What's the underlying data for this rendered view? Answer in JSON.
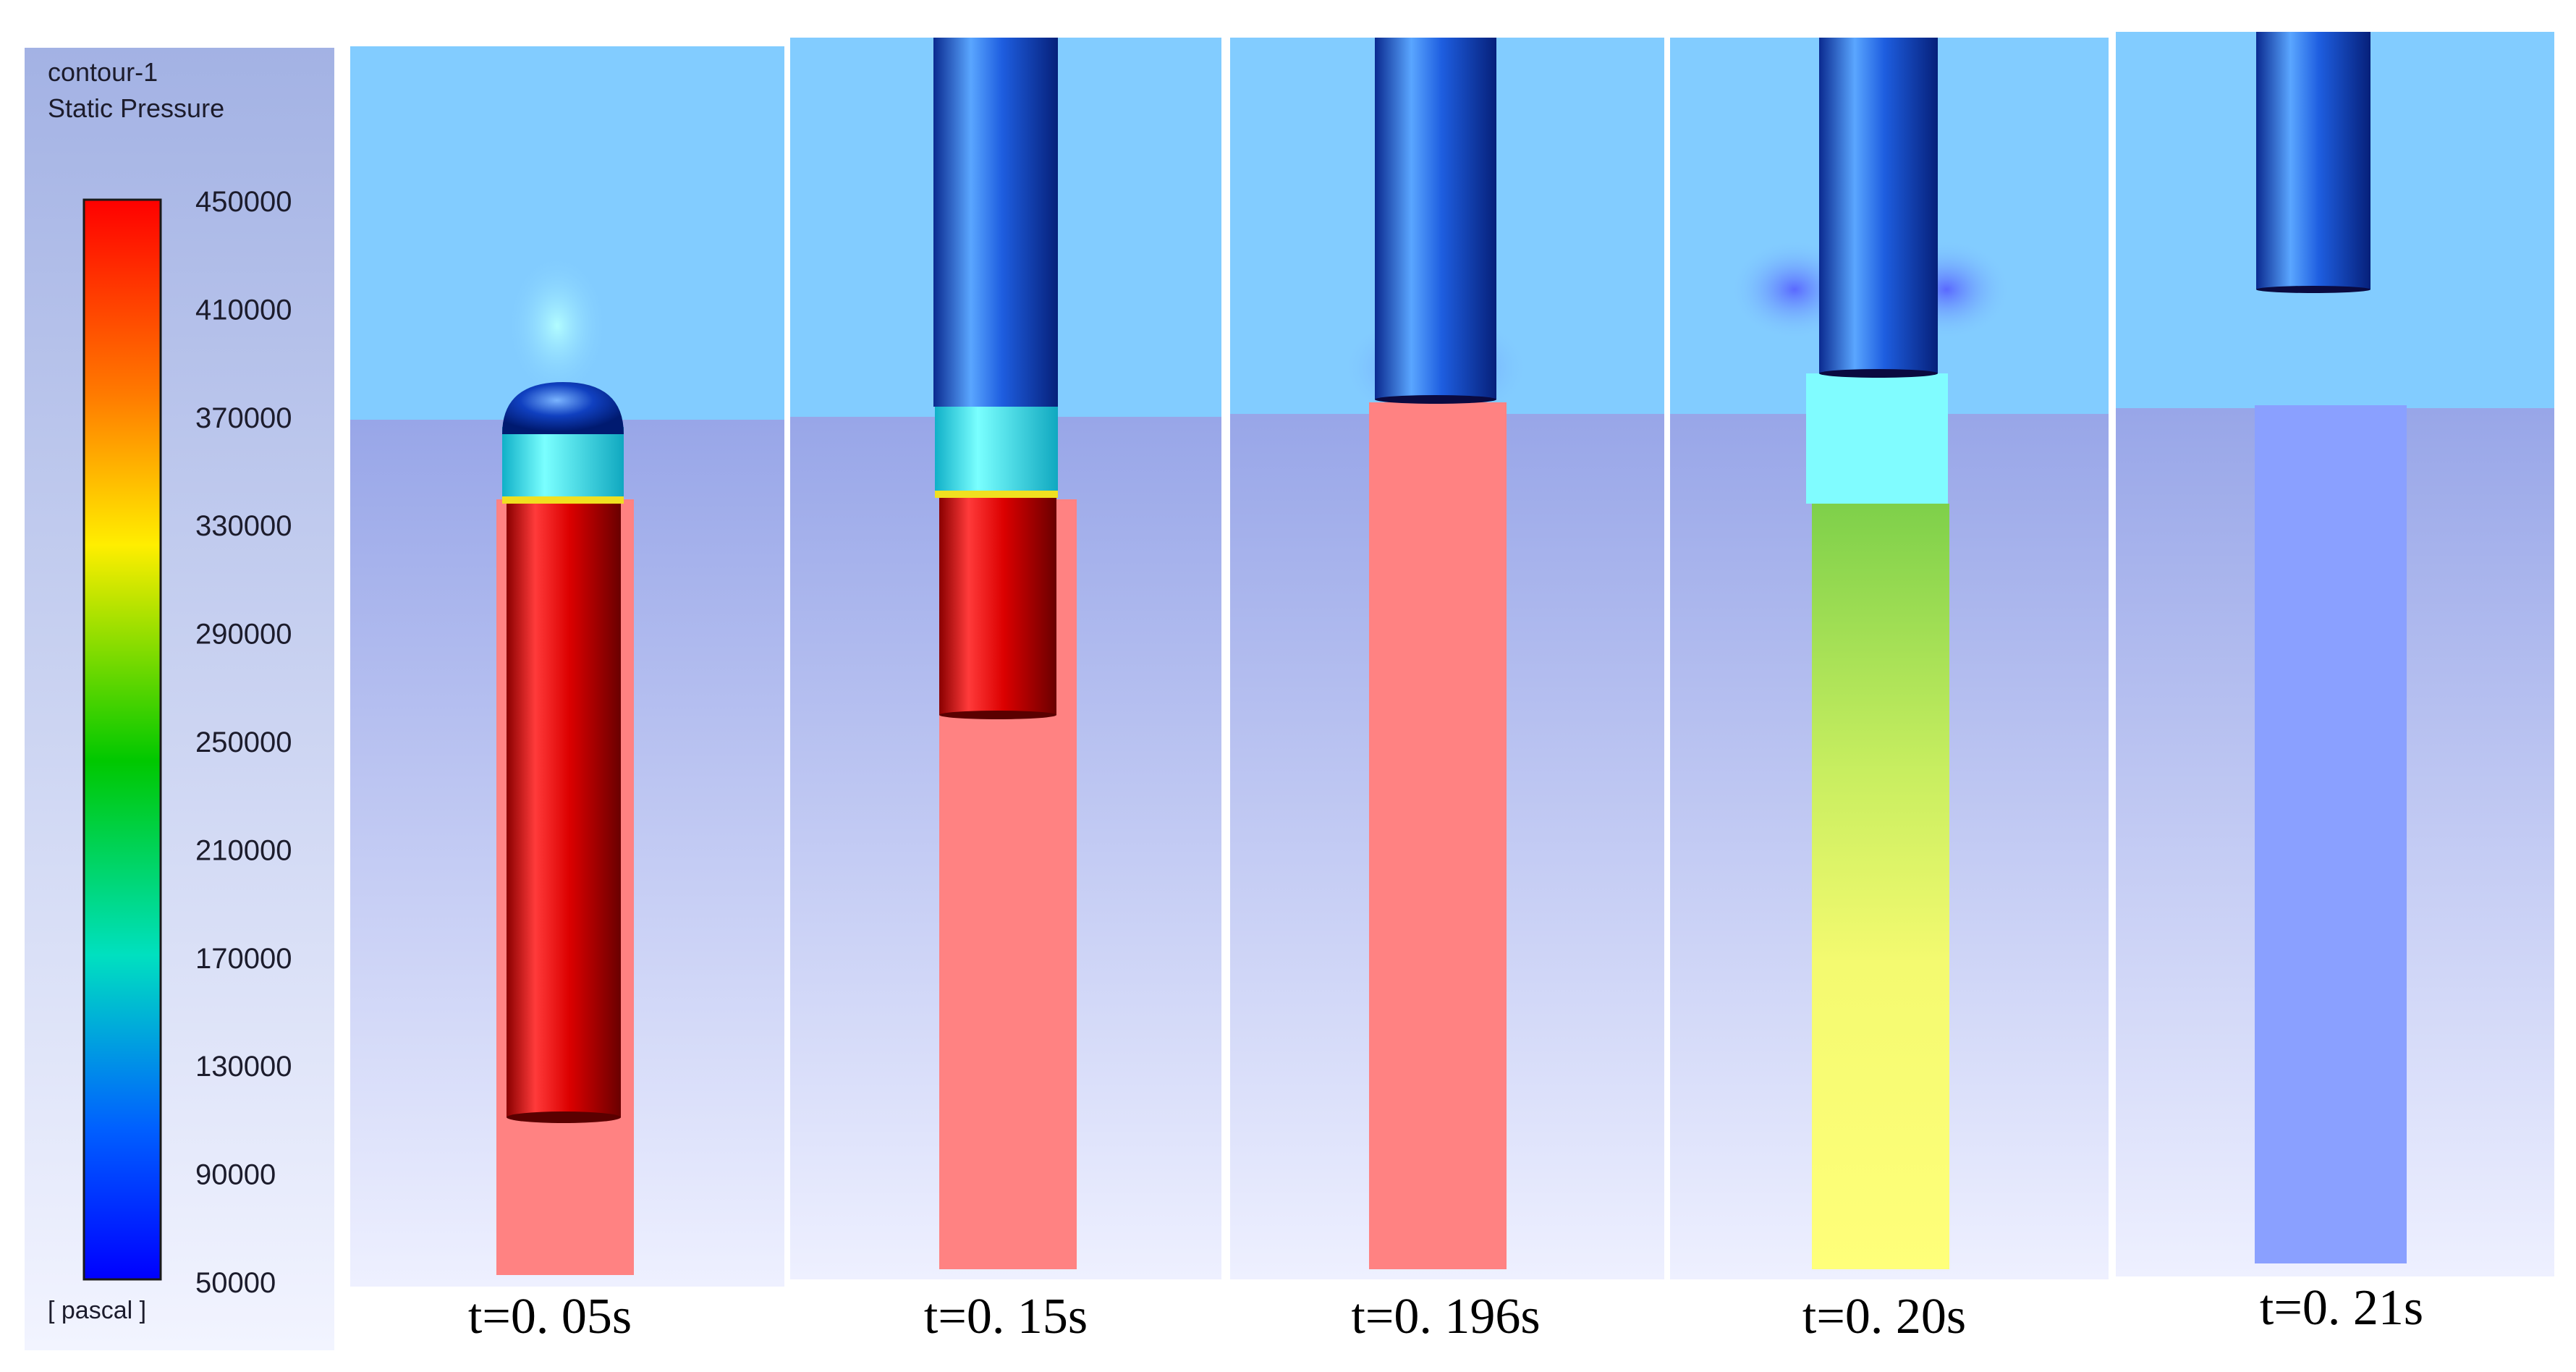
{
  "legend": {
    "title_line1": "contour-1",
    "title_line2": "Static Pressure",
    "unit": "[ pascal ]",
    "ticks": [
      "450000",
      "410000",
      "370000",
      "330000",
      "290000",
      "250000",
      "210000",
      "170000",
      "130000",
      "90000",
      "50000"
    ],
    "gradient_colors": [
      "#ff0000",
      "#ff7a00",
      "#ffee00",
      "#00c800",
      "#00e0c0",
      "#0060ff",
      "#0000ff"
    ]
  },
  "panels": [
    {
      "caption": "t=0. 05s"
    },
    {
      "caption": "t=0. 15s"
    },
    {
      "caption": "t=0. 196s"
    },
    {
      "caption": "t=0. 20s"
    },
    {
      "caption": "t=0. 21s"
    }
  ],
  "colors": {
    "air": "#82ccff",
    "water_top": "#98a6e8",
    "water_bottom": "#eef0ff",
    "high_pressure_fluid": "#ff8282",
    "cavity_yellow": "#ffff7a",
    "cavity_low": "#8aa0ff",
    "tube_red": "#dc0000",
    "tube_blue": "#0a3cc8"
  }
}
